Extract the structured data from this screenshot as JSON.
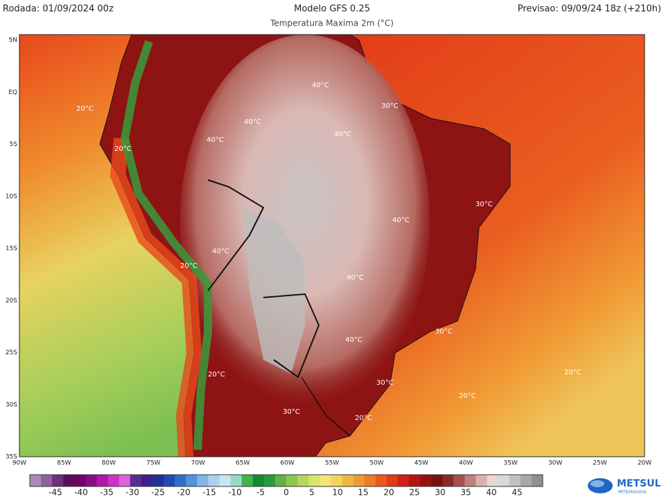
{
  "header": {
    "run": "Rodada: 01/09/2024 00z",
    "model": "Modelo GFS 0.25",
    "variable": "Temperatura Maxima 2m (°C)",
    "forecast": "Previsao: 09/09/24 18z (+210h)"
  },
  "map": {
    "lat_labels": [
      "5N",
      "EQ",
      "5S",
      "10S",
      "15S",
      "20S",
      "25S",
      "30S",
      "35S"
    ],
    "lon_labels": [
      "90W",
      "85W",
      "80W",
      "75W",
      "70W",
      "65W",
      "60W",
      "55W",
      "50W",
      "45W",
      "40W",
      "35W",
      "30W",
      "25W",
      "20W"
    ],
    "contour_labels": [
      "20°C",
      "40°C",
      "30°C",
      "40°C",
      "40°C",
      "20°C",
      "40°C",
      "30°C",
      "40°C",
      "20°C",
      "40°C",
      "40°C",
      "30°C",
      "20°C",
      "30°C",
      "30°C",
      "20°C",
      "20°C",
      "20°C"
    ]
  },
  "colorbar": {
    "ticks": [
      -45,
      -40,
      -35,
      -30,
      -25,
      -20,
      -15,
      -10,
      -5,
      0,
      5,
      10,
      15,
      20,
      25,
      30,
      35,
      40,
      45
    ],
    "range": [
      -50,
      50
    ],
    "colors": [
      "#a98bb5",
      "#8f5f9e",
      "#6f2f7e",
      "#5a0d5a",
      "#6e0068",
      "#8a0a86",
      "#b018ac",
      "#cc33c4",
      "#e060d8",
      "#5a2d91",
      "#3f1f8f",
      "#20309a",
      "#1f4ab0",
      "#2f6fcc",
      "#4f95dc",
      "#7fb6e6",
      "#a8d2ee",
      "#c8e6f0",
      "#9ad7c4",
      "#3fb44a",
      "#138a2e",
      "#2f9a3a",
      "#5fb34a",
      "#8cc653",
      "#b5d65c",
      "#d9e467",
      "#efe678",
      "#f4d35a",
      "#f1b83f",
      "#ef9a30",
      "#ec7a26",
      "#e85a1f",
      "#e23a18",
      "#d22014",
      "#b51412",
      "#961010",
      "#7e0f12",
      "#8a2a2a",
      "#a35050",
      "#bf8080",
      "#d9b0b0",
      "#ebd5d5",
      "#d8d8d8",
      "#c0c0c0",
      "#a8a8a8",
      "#909090"
    ]
  },
  "logo": {
    "name": "METSUL",
    "tagline": "METEOROLOGIA"
  }
}
